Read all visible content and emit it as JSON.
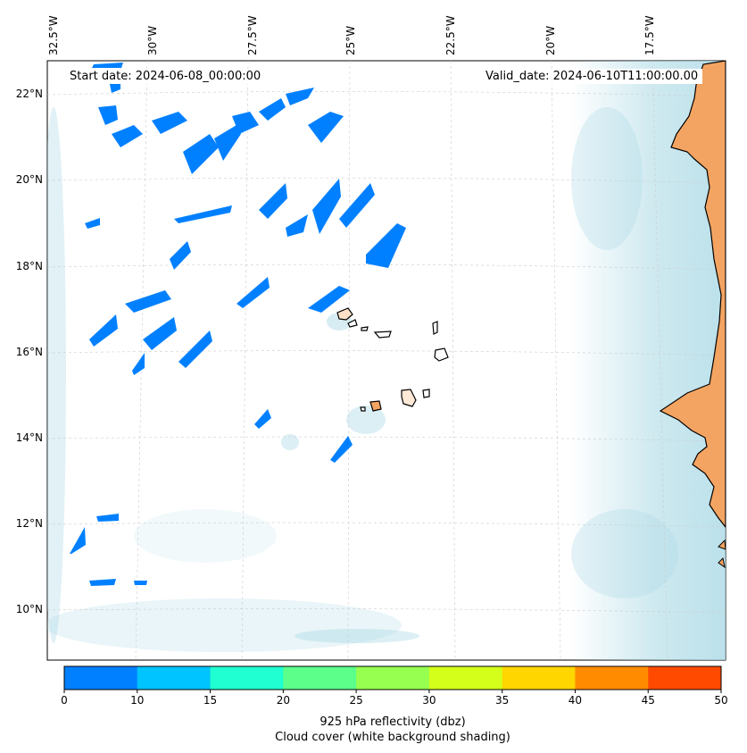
{
  "map": {
    "start_date": "Start date: 2024-06-08_00:00:00",
    "valid_date": "Valid_date: 2024-06-10T11:00:00.00",
    "lon_labels": [
      "32.5°W",
      "30°W",
      "27.5°W",
      "25°W",
      "22.5°W",
      "20°W",
      "17.5°W"
    ],
    "lat_labels": [
      "22°N",
      "20°N",
      "18°N",
      "16°N",
      "14°N",
      "12°N",
      "10°N"
    ],
    "land_color": "#f4a462",
    "cloud_color": "#a8d8e4",
    "ocean_color": "#ffffff"
  },
  "colorbar": {
    "ticks": [
      "0",
      "10",
      "15",
      "20",
      "25",
      "30",
      "35",
      "40",
      "45",
      "50"
    ],
    "colors": [
      "#0080ff",
      "#00c4ff",
      "#1fffd2",
      "#5cff8a",
      "#96ff50",
      "#d4ff1a",
      "#ffd600",
      "#ff8c00",
      "#ff4a00"
    ],
    "label_line1": "925 hPa reflectivity (dbz)",
    "label_line2": "Cloud cover (white background shading)"
  }
}
